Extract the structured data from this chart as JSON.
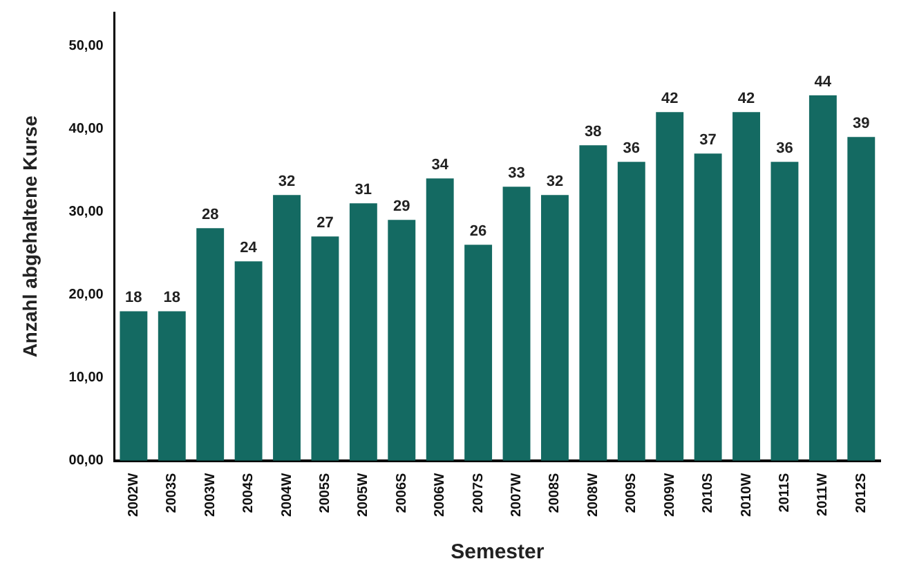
{
  "chart_data": {
    "type": "bar",
    "xlabel": "Semester",
    "ylabel": "Anzahl abgehaltene Kurse",
    "categories": [
      "2002W",
      "2003S",
      "2003W",
      "2004S",
      "2004W",
      "2005S",
      "2005W",
      "2006S",
      "2006W",
      "2007S",
      "2007W",
      "2008S",
      "2008W",
      "2009S",
      "2009W",
      "2010S",
      "2010W",
      "2011S",
      "2011W",
      "2012S"
    ],
    "values": [
      18,
      18,
      28,
      24,
      32,
      27,
      31,
      29,
      34,
      26,
      33,
      32,
      38,
      36,
      42,
      37,
      42,
      36,
      44,
      39
    ],
    "color": "#146a62",
    "ylim": [
      0,
      54
    ],
    "yticks": [
      {
        "value": 0,
        "label": "00,00"
      },
      {
        "value": 10,
        "label": "10,00"
      },
      {
        "value": 20,
        "label": "20,00"
      },
      {
        "value": 30,
        "label": "30,00"
      },
      {
        "value": 40,
        "label": "40,00"
      },
      {
        "value": 50,
        "label": "50,00"
      }
    ],
    "grid": false,
    "legend": false,
    "data_labels": true
  }
}
